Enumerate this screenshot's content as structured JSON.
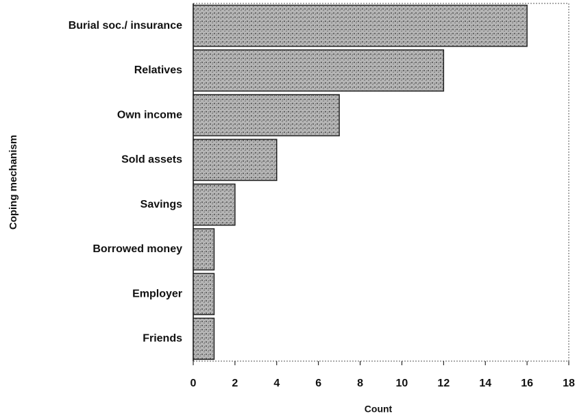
{
  "chart_data": {
    "type": "bar",
    "orientation": "horizontal",
    "categories": [
      "Burial soc./ insurance",
      "Relatives",
      "Own income",
      "Sold assets",
      "Savings",
      "Borrowed money",
      "Employer",
      "Friends"
    ],
    "values": [
      16,
      12,
      7,
      4,
      2,
      1,
      1,
      1
    ],
    "color": "#9a9a9a",
    "xlim": [
      0,
      18
    ],
    "xticks": [
      0,
      2,
      4,
      6,
      8,
      10,
      12,
      14,
      16,
      18
    ],
    "xlabel": "Count",
    "ylabel": "Coping mechanism",
    "grid": false
  }
}
